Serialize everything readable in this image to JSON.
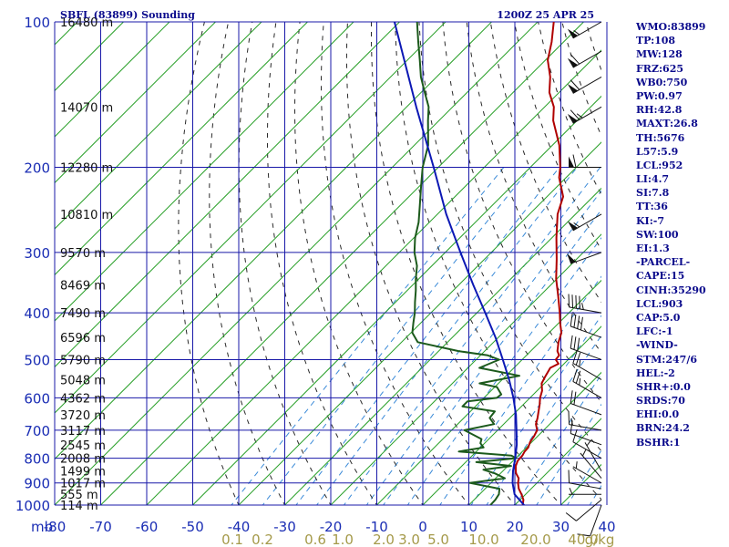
{
  "header": {
    "station": "SBFL (83899) Sounding",
    "time": "1200Z 25 APR 25"
  },
  "stats": [
    "WMO:83899",
    "TP:108",
    "MW:128",
    "FRZ:625",
    "WB0:750",
    "PW:0.97",
    "RH:42.8",
    "MAXT:26.8",
    "TH:5676",
    "L57:5.9",
    "LCL:952",
    "LI:4.7",
    "SI:7.8",
    "TT:36",
    "KI:-7",
    "SW:100",
    "EI:1.3",
    "-PARCEL-",
    "CAPE:15",
    "CINH:35290",
    "LCL:903",
    "CAP:5.0",
    "LFC:-1",
    "-WIND-",
    "STM:247/6",
    "HEL:-2",
    "SHR+:0.0",
    "SRDS:70",
    "EHI:0.0",
    "BRN:24.2",
    "BSHR:1"
  ],
  "colors": {
    "isobar_grid": "#1818a8",
    "isotherm": "#2aa02a",
    "dry_adiabat": "#2a2a2a",
    "mixing_ratio": "#3a8ad8",
    "temperature": "#b00000",
    "dewpoint": "#1c5a1c",
    "parcel": "#0c18b4",
    "wind_barb": "#111111"
  },
  "chart_data": {
    "type": "line",
    "subtype": "skew-t log-p sounding",
    "title": "SBFL (83899) Sounding",
    "y_scale": "log (pressure, mb)",
    "xlim": [
      -80,
      40
    ],
    "ylim": [
      1000,
      100
    ],
    "x_unit_label": "mb",
    "x_ticks": [
      "-80",
      "-70",
      "-60",
      "-50",
      "-40",
      "-30",
      "-20",
      "-10",
      "0",
      "10",
      "20",
      "30",
      "40"
    ],
    "y_ticks": [
      "100",
      "200",
      "300",
      "400",
      "500",
      "600",
      "700",
      "800",
      "900",
      "1000"
    ],
    "mixing_ratio_labels": [
      "0.1",
      "0.2",
      "0.6",
      "1.0",
      "2.0",
      "3.0",
      "5.0",
      "10.0",
      "20.0",
      "40.0",
      "g/kg"
    ],
    "height_labels": [
      {
        "p": 1000,
        "text": "114 m"
      },
      {
        "p": 950,
        "text": "555 m"
      },
      {
        "p": 900,
        "text": "1017 m"
      },
      {
        "p": 850,
        "text": "1499 m"
      },
      {
        "p": 800,
        "text": "2008 m"
      },
      {
        "p": 750,
        "text": "2545 m"
      },
      {
        "p": 700,
        "text": "3117 m"
      },
      {
        "p": 650,
        "text": "3720 m"
      },
      {
        "p": 600,
        "text": "4362 m"
      },
      {
        "p": 550,
        "text": "5048 m"
      },
      {
        "p": 500,
        "text": "5790 m"
      },
      {
        "p": 450,
        "text": "6596 m"
      },
      {
        "p": 400,
        "text": "7490 m"
      },
      {
        "p": 350,
        "text": "8469 m"
      },
      {
        "p": 300,
        "text": "9570 m"
      },
      {
        "p": 250,
        "text": "10810 m"
      },
      {
        "p": 200,
        "text": "12280 m"
      },
      {
        "p": 150,
        "text": "14070 m"
      },
      {
        "p": 100,
        "text": "16480 m"
      }
    ],
    "series": [
      {
        "key": "temperature",
        "points": [
          [
            1000,
            21.7
          ],
          [
            975,
            20.7
          ],
          [
            950,
            19.1
          ],
          [
            925,
            17.3
          ],
          [
            900,
            15.9
          ],
          [
            880,
            15.0
          ],
          [
            860,
            13.4
          ],
          [
            850,
            12.8
          ],
          [
            830,
            11.7
          ],
          [
            810,
            11.0
          ],
          [
            790,
            10.9
          ],
          [
            775,
            10.5
          ],
          [
            760,
            10.4
          ],
          [
            740,
            9.6
          ],
          [
            720,
            9.2
          ],
          [
            700,
            8.6
          ],
          [
            680,
            7.0
          ],
          [
            660,
            6.0
          ],
          [
            640,
            4.8
          ],
          [
            620,
            3.6
          ],
          [
            600,
            2.2
          ],
          [
            580,
            1.1
          ],
          [
            560,
            -0.6
          ],
          [
            540,
            -1.4
          ],
          [
            520,
            -2.1
          ],
          [
            510,
            -1.2
          ],
          [
            500,
            -2.7
          ],
          [
            490,
            -2.9
          ],
          [
            480,
            -4.2
          ],
          [
            460,
            -5.9
          ],
          [
            440,
            -7.3
          ],
          [
            420,
            -9.7
          ],
          [
            400,
            -12.0
          ],
          [
            370,
            -15.9
          ],
          [
            340,
            -20.2
          ],
          [
            310,
            -24.3
          ],
          [
            280,
            -29.0
          ],
          [
            250,
            -33.9
          ],
          [
            230,
            -36.5
          ],
          [
            210,
            -41.5
          ],
          [
            200,
            -43.5
          ],
          [
            180,
            -48.5
          ],
          [
            160,
            -55.2
          ],
          [
            150,
            -58.0
          ],
          [
            140,
            -62.1
          ],
          [
            130,
            -65.3
          ],
          [
            120,
            -69.5
          ],
          [
            110,
            -72.6
          ],
          [
            100,
            -76.5
          ]
        ]
      },
      {
        "key": "dewpoint",
        "points": [
          [
            1000,
            14.7
          ],
          [
            975,
            14.6
          ],
          [
            950,
            14.2
          ],
          [
            925,
            13.1
          ],
          [
            900,
            5.4
          ],
          [
            880,
            12.0
          ],
          [
            860,
            8.8
          ],
          [
            845,
            5.5
          ],
          [
            830,
            10.7
          ],
          [
            815,
            2.3
          ],
          [
            800,
            10.1
          ],
          [
            790,
            8.5
          ],
          [
            775,
            -3.8
          ],
          [
            760,
            0.7
          ],
          [
            745,
            -0.9
          ],
          [
            730,
            -1.6
          ],
          [
            700,
            -7.2
          ],
          [
            680,
            -2.1
          ],
          [
            660,
            -4.4
          ],
          [
            640,
            -4.7
          ],
          [
            625,
            -12.8
          ],
          [
            610,
            -12.8
          ],
          [
            600,
            -7.2
          ],
          [
            590,
            -7.0
          ],
          [
            570,
            -9.5
          ],
          [
            560,
            -14.1
          ],
          [
            540,
            -7.1
          ],
          [
            520,
            -17.5
          ],
          [
            500,
            -15.0
          ],
          [
            490,
            -18.4
          ],
          [
            480,
            -25.7
          ],
          [
            460,
            -36.5
          ],
          [
            440,
            -39.7
          ],
          [
            420,
            -41.6
          ],
          [
            400,
            -43.5
          ],
          [
            380,
            -45.8
          ],
          [
            360,
            -48.1
          ],
          [
            340,
            -50.7
          ],
          [
            320,
            -53.2
          ],
          [
            300,
            -56.7
          ],
          [
            280,
            -59.7
          ],
          [
            260,
            -62.3
          ],
          [
            240,
            -65.7
          ],
          [
            220,
            -69.4
          ],
          [
            200,
            -73.4
          ],
          [
            180,
            -77.0
          ],
          [
            160,
            -82.4
          ],
          [
            150,
            -85.2
          ],
          [
            140,
            -89.2
          ],
          [
            130,
            -93.4
          ],
          [
            120,
            -97.3
          ],
          [
            110,
            -101.6
          ],
          [
            100,
            -106.2
          ]
        ]
      },
      {
        "key": "parcel",
        "points": [
          [
            1000,
            22.0
          ],
          [
            950,
            17.6
          ],
          [
            900,
            14.7
          ],
          [
            850,
            12.2
          ],
          [
            800,
            9.9
          ],
          [
            750,
            7.3
          ],
          [
            700,
            4.1
          ],
          [
            650,
            0.6
          ],
          [
            600,
            -3.6
          ],
          [
            550,
            -8.5
          ],
          [
            500,
            -14.2
          ],
          [
            450,
            -20.6
          ],
          [
            400,
            -28.2
          ],
          [
            350,
            -36.9
          ],
          [
            300,
            -46.7
          ],
          [
            250,
            -58.1
          ],
          [
            200,
            -71.0
          ],
          [
            150,
            -87.9
          ],
          [
            100,
            -111.1
          ]
        ]
      }
    ],
    "wind_barbs": [
      {
        "p": 1000,
        "dir": 200,
        "speed": 10
      },
      {
        "p": 975,
        "dir": 230,
        "speed": 10
      },
      {
        "p": 950,
        "dir": 270,
        "speed": 5
      },
      {
        "p": 925,
        "dir": 280,
        "speed": 10
      },
      {
        "p": 900,
        "dir": 300,
        "speed": 5
      },
      {
        "p": 880,
        "dir": 320,
        "speed": 5
      },
      {
        "p": 850,
        "dir": 330,
        "speed": 5
      },
      {
        "p": 800,
        "dir": 300,
        "speed": 10
      },
      {
        "p": 750,
        "dir": 290,
        "speed": 10
      },
      {
        "p": 700,
        "dir": 280,
        "speed": 15
      },
      {
        "p": 650,
        "dir": 290,
        "speed": 20
      },
      {
        "p": 600,
        "dir": 300,
        "speed": 25
      },
      {
        "p": 550,
        "dir": 300,
        "speed": 25
      },
      {
        "p": 500,
        "dir": 290,
        "speed": 30
      },
      {
        "p": 450,
        "dir": 290,
        "speed": 40
      },
      {
        "p": 400,
        "dir": 280,
        "speed": 45
      },
      {
        "p": 300,
        "dir": 250,
        "speed": 50
      },
      {
        "p": 250,
        "dir": 240,
        "speed": 55
      },
      {
        "p": 200,
        "dir": 270,
        "speed": 60
      },
      {
        "p": 150,
        "dir": 240,
        "speed": 65
      },
      {
        "p": 130,
        "dir": 240,
        "speed": 60
      },
      {
        "p": 115,
        "dir": 240,
        "speed": 60
      },
      {
        "p": 100,
        "dir": 240,
        "speed": 55
      }
    ]
  }
}
